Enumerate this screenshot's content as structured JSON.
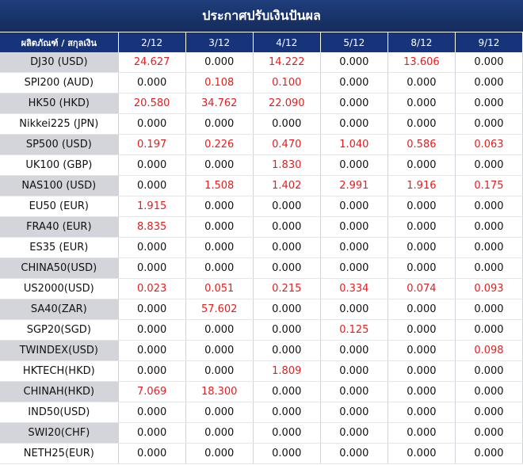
{
  "title": "ประกาศปรับเงินปันผล",
  "header": {
    "product_col": "ผลิตภัณฑ์ / สกุลเงิน",
    "dates": [
      "2/12",
      "3/12",
      "4/12",
      "5/12",
      "8/12",
      "9/12"
    ]
  },
  "colors": {
    "header_bg": "#17337a",
    "alt_row": "#d4d5da",
    "highlight": "#e02020"
  },
  "rows": [
    {
      "product": "DJ30 (USD)",
      "values": [
        "24.627",
        "0.000",
        "14.222",
        "0.000",
        "13.606",
        "0.000"
      ]
    },
    {
      "product": "SPI200 (AUD)",
      "values": [
        "0.000",
        "0.108",
        "0.100",
        "0.000",
        "0.000",
        "0.000"
      ]
    },
    {
      "product": "HK50 (HKD)",
      "values": [
        "20.580",
        "34.762",
        "22.090",
        "0.000",
        "0.000",
        "0.000"
      ]
    },
    {
      "product": "Nikkei225 (JPN)",
      "values": [
        "0.000",
        "0.000",
        "0.000",
        "0.000",
        "0.000",
        "0.000"
      ]
    },
    {
      "product": "SP500 (USD)",
      "values": [
        "0.197",
        "0.226",
        "0.470",
        "1.040",
        "0.586",
        "0.063"
      ]
    },
    {
      "product": "UK100 (GBP)",
      "values": [
        "0.000",
        "0.000",
        "1.830",
        "0.000",
        "0.000",
        "0.000"
      ]
    },
    {
      "product": "NAS100 (USD)",
      "values": [
        "0.000",
        "1.508",
        "1.402",
        "2.991",
        "1.916",
        "0.175"
      ]
    },
    {
      "product": "EU50 (EUR)",
      "values": [
        "1.915",
        "0.000",
        "0.000",
        "0.000",
        "0.000",
        "0.000"
      ]
    },
    {
      "product": "FRA40 (EUR)",
      "values": [
        "8.835",
        "0.000",
        "0.000",
        "0.000",
        "0.000",
        "0.000"
      ]
    },
    {
      "product": "ES35 (EUR)",
      "values": [
        "0.000",
        "0.000",
        "0.000",
        "0.000",
        "0.000",
        "0.000"
      ]
    },
    {
      "product": "CHINA50(USD)",
      "values": [
        "0.000",
        "0.000",
        "0.000",
        "0.000",
        "0.000",
        "0.000"
      ]
    },
    {
      "product": "US2000(USD)",
      "values": [
        "0.023",
        "0.051",
        "0.215",
        "0.334",
        "0.074",
        "0.093"
      ]
    },
    {
      "product": "SA40(ZAR)",
      "values": [
        "0.000",
        "57.602",
        "0.000",
        "0.000",
        "0.000",
        "0.000"
      ]
    },
    {
      "product": "SGP20(SGD)",
      "values": [
        "0.000",
        "0.000",
        "0.000",
        "0.125",
        "0.000",
        "0.000"
      ]
    },
    {
      "product": "TWINDEX(USD)",
      "values": [
        "0.000",
        "0.000",
        "0.000",
        "0.000",
        "0.000",
        "0.098"
      ]
    },
    {
      "product": "HKTECH(HKD)",
      "values": [
        "0.000",
        "0.000",
        "1.809",
        "0.000",
        "0.000",
        "0.000"
      ]
    },
    {
      "product": "CHINAH(HKD)",
      "values": [
        "7.069",
        "18.300",
        "0.000",
        "0.000",
        "0.000",
        "0.000"
      ]
    },
    {
      "product": "IND50(USD)",
      "values": [
        "0.000",
        "0.000",
        "0.000",
        "0.000",
        "0.000",
        "0.000"
      ]
    },
    {
      "product": "SWI20(CHF)",
      "values": [
        "0.000",
        "0.000",
        "0.000",
        "0.000",
        "0.000",
        "0.000"
      ]
    },
    {
      "product": "NETH25(EUR)",
      "values": [
        "0.000",
        "0.000",
        "0.000",
        "0.000",
        "0.000",
        "0.000"
      ]
    }
  ]
}
